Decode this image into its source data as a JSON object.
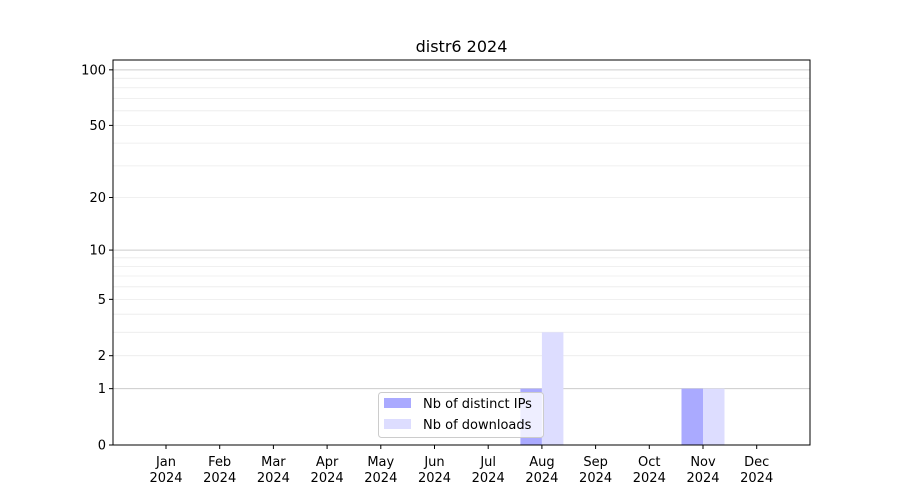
{
  "chart_data": {
    "type": "bar",
    "title": "distr6 2024",
    "xlabel": "",
    "ylabel": "",
    "y_scale": "symlog",
    "ylim": [
      0,
      113
    ],
    "y_ticks": [
      0,
      1,
      2,
      5,
      10,
      20,
      50,
      100
    ],
    "grid": true,
    "legend_position": "lower-center",
    "categories": [
      [
        "Jan",
        "2024"
      ],
      [
        "Feb",
        "2024"
      ],
      [
        "Mar",
        "2024"
      ],
      [
        "Apr",
        "2024"
      ],
      [
        "May",
        "2024"
      ],
      [
        "Jun",
        "2024"
      ],
      [
        "Jul",
        "2024"
      ],
      [
        "Aug",
        "2024"
      ],
      [
        "Sep",
        "2024"
      ],
      [
        "Oct",
        "2024"
      ],
      [
        "Nov",
        "2024"
      ],
      [
        "Dec",
        "2024"
      ]
    ],
    "series": [
      {
        "name": "Nb of distinct IPs",
        "color": "#aaaaff",
        "values": [
          0,
          0,
          0,
          0,
          0,
          0,
          0,
          1,
          0,
          0,
          1,
          0
        ]
      },
      {
        "name": "Nb of downloads",
        "color": "#ddddff",
        "values": [
          0,
          0,
          0,
          0,
          0,
          0,
          0,
          3,
          0,
          0,
          1,
          0
        ]
      }
    ]
  }
}
